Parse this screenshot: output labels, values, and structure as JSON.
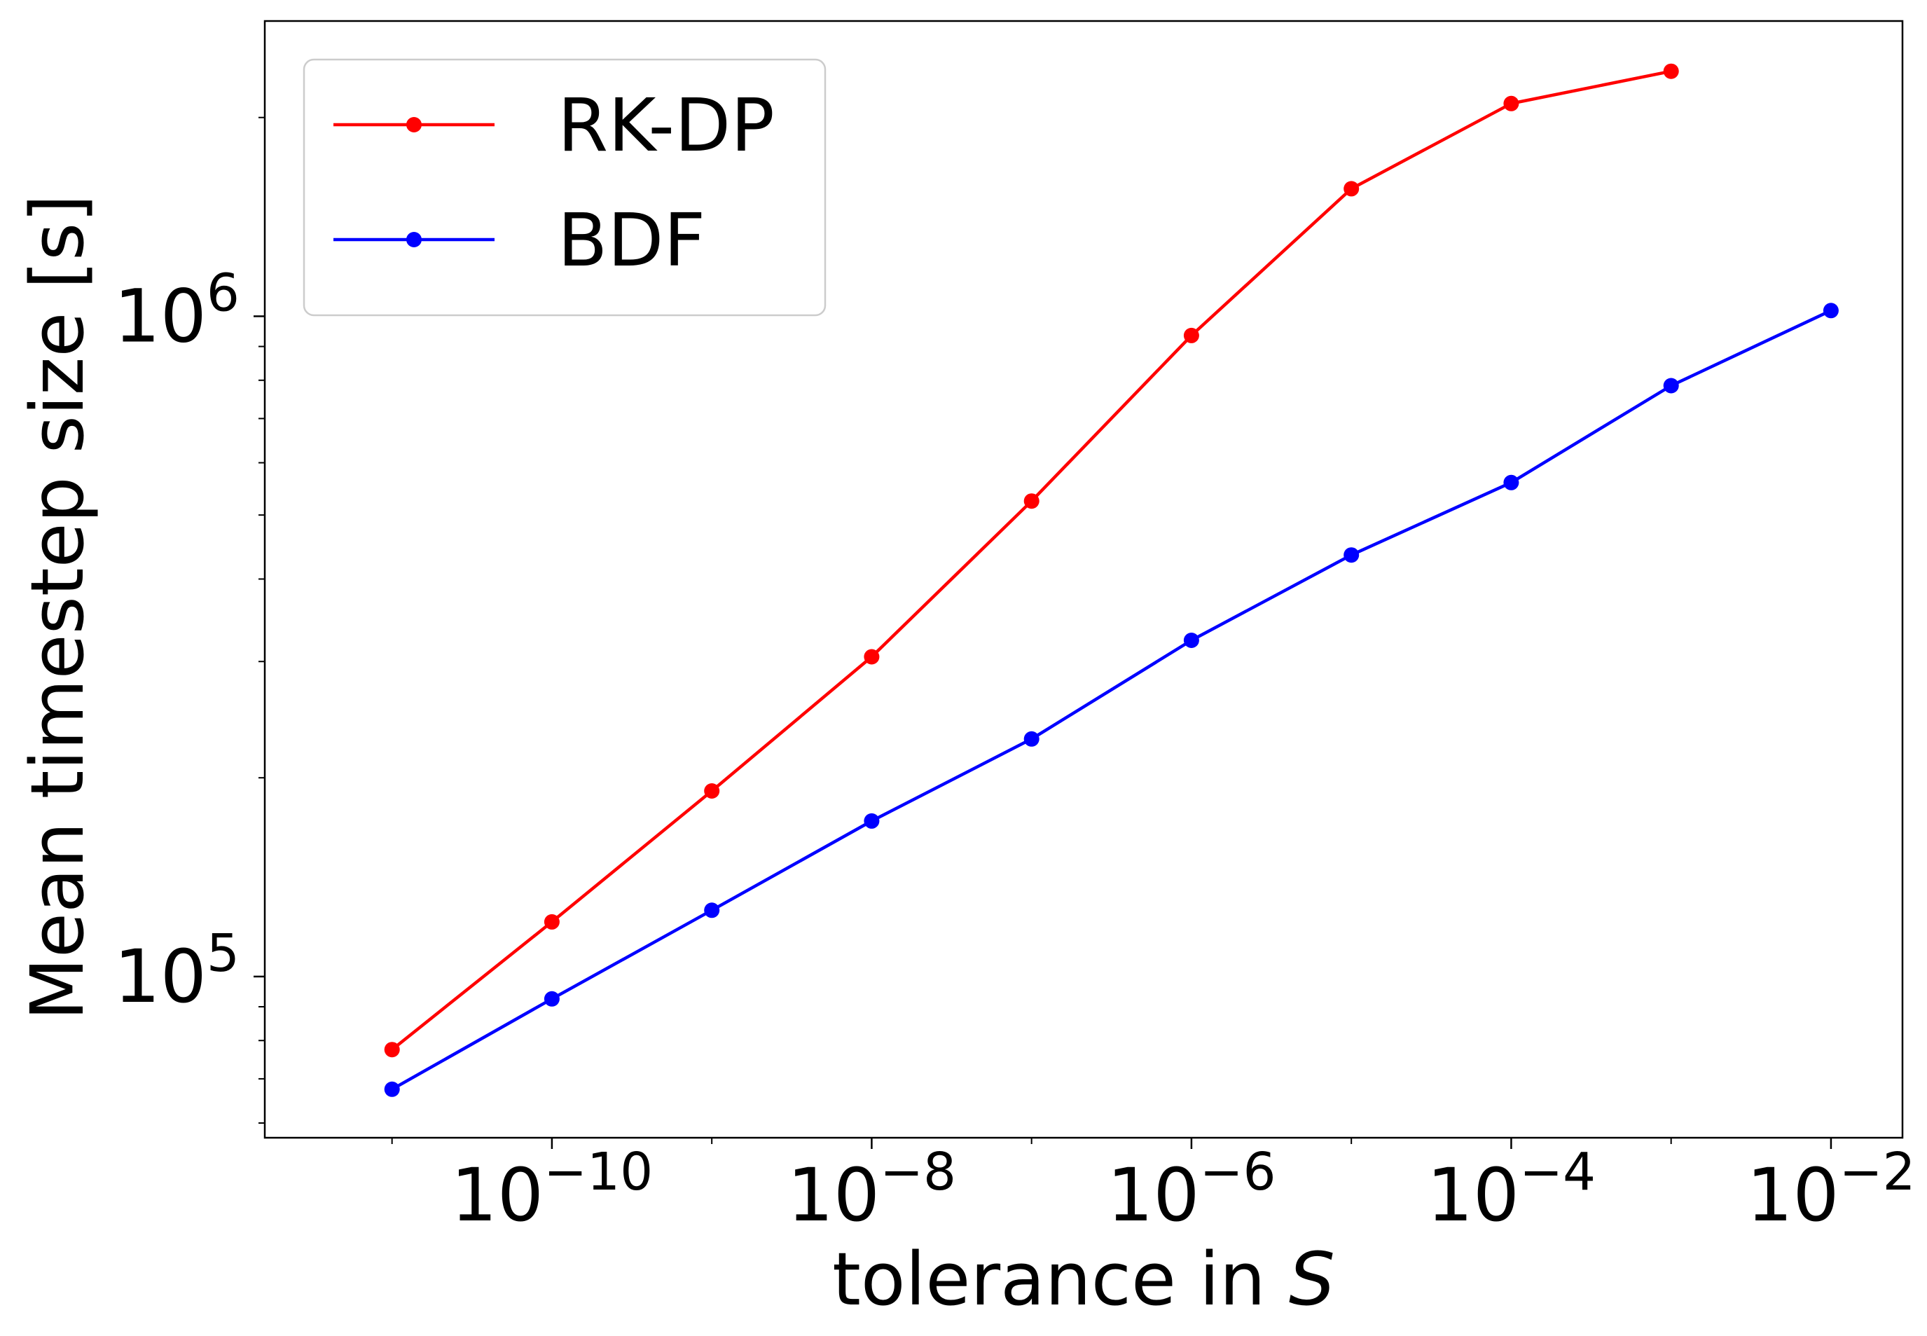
{
  "chart_data": {
    "type": "line",
    "title": "",
    "xlabel": "tolerance in ",
    "xlabel_symbol": "S",
    "ylabel": "Mean timestep size [s]",
    "x_scale": "log",
    "y_scale": "log",
    "xlim": [
      1.6e-12,
      0.028
    ],
    "ylim": [
      57000,
      2800000
    ],
    "x_ticks": [
      {
        "value": 1e-10,
        "base": "10",
        "exp": "−10"
      },
      {
        "value": 1e-08,
        "base": "10",
        "exp": "−8"
      },
      {
        "value": 1e-06,
        "base": "10",
        "exp": "−6"
      },
      {
        "value": 0.0001,
        "base": "10",
        "exp": "−4"
      },
      {
        "value": 0.01,
        "base": "10",
        "exp": "−2"
      }
    ],
    "y_ticks": [
      {
        "value": 100000,
        "base": "10",
        "exp": "5"
      },
      {
        "value": 1000000,
        "base": "10",
        "exp": "6"
      }
    ],
    "grid": false,
    "legend_position": "top-left",
    "series": [
      {
        "name": "RK-DP",
        "color": "#ff0000",
        "x": [
          1e-11,
          1e-10,
          1e-09,
          1e-08,
          1e-07,
          1e-06,
          1e-05,
          0.0001,
          0.001
        ],
        "y": [
          77500,
          121000,
          191000,
          305000,
          525000,
          935000,
          1560000,
          2100000,
          2350000
        ]
      },
      {
        "name": "BDF",
        "color": "#0000ff",
        "x": [
          1e-11,
          1e-10,
          1e-09,
          1e-08,
          1e-07,
          1e-06,
          1e-05,
          0.0001,
          0.001,
          0.01
        ],
        "y": [
          67500,
          92500,
          126000,
          172000,
          229000,
          323000,
          435000,
          560000,
          785000,
          1020000
        ]
      }
    ]
  }
}
